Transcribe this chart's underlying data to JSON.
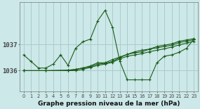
{
  "bg_color": "#cce8e8",
  "grid_color": "#aacccc",
  "line_color": "#1a5c1a",
  "xlabel": "Graphe pression niveau de la mer (hPa)",
  "xlabel_fontsize": 6.5,
  "yticks": [
    1036,
    1037
  ],
  "xlim": [
    -0.5,
    23.5
  ],
  "ylim": [
    1035.2,
    1038.6
  ],
  "series": [
    {
      "x": [
        0,
        1,
        2,
        3,
        4,
        5,
        6,
        7,
        8,
        9,
        10,
        11,
        12,
        13,
        14,
        15,
        16,
        17,
        18,
        19,
        20,
        21,
        22,
        23
      ],
      "y": [
        1036.6,
        1036.35,
        1036.1,
        1036.1,
        1036.25,
        1036.6,
        1036.2,
        1036.85,
        1037.1,
        1037.2,
        1037.9,
        1038.3,
        1037.65,
        1036.35,
        1035.65,
        1035.65,
        1035.65,
        1035.65,
        1036.3,
        1036.55,
        1036.6,
        1036.7,
        1036.85,
        1037.2
      ]
    },
    {
      "x": [
        0,
        3,
        6,
        7,
        8,
        9,
        10,
        11,
        12,
        13,
        14,
        15,
        16,
        17,
        18,
        19,
        20,
        21,
        22,
        23
      ],
      "y": [
        1036.0,
        1036.0,
        1036.0,
        1036.05,
        1036.1,
        1036.15,
        1036.25,
        1036.28,
        1036.35,
        1036.5,
        1036.62,
        1036.68,
        1036.72,
        1036.82,
        1036.92,
        1036.97,
        1037.02,
        1037.12,
        1037.17,
        1037.22
      ]
    },
    {
      "x": [
        0,
        3,
        6,
        7,
        8,
        9,
        10,
        11,
        12,
        13,
        14,
        15,
        16,
        17,
        18,
        19,
        20,
        21,
        22,
        23
      ],
      "y": [
        1036.0,
        1036.0,
        1036.02,
        1036.05,
        1036.1,
        1036.18,
        1036.3,
        1036.3,
        1036.42,
        1036.52,
        1036.62,
        1036.72,
        1036.78,
        1036.82,
        1036.87,
        1036.92,
        1036.97,
        1037.07,
        1037.12,
        1037.18
      ]
    },
    {
      "x": [
        0,
        3,
        6,
        7,
        8,
        9,
        10,
        11,
        12,
        13,
        14,
        15,
        16,
        17,
        18,
        19,
        20,
        21,
        22,
        23
      ],
      "y": [
        1036.0,
        1036.0,
        1036.0,
        1036.0,
        1036.05,
        1036.12,
        1036.2,
        1036.25,
        1036.32,
        1036.45,
        1036.55,
        1036.6,
        1036.65,
        1036.72,
        1036.78,
        1036.83,
        1036.9,
        1036.98,
        1037.05,
        1037.12
      ]
    }
  ]
}
